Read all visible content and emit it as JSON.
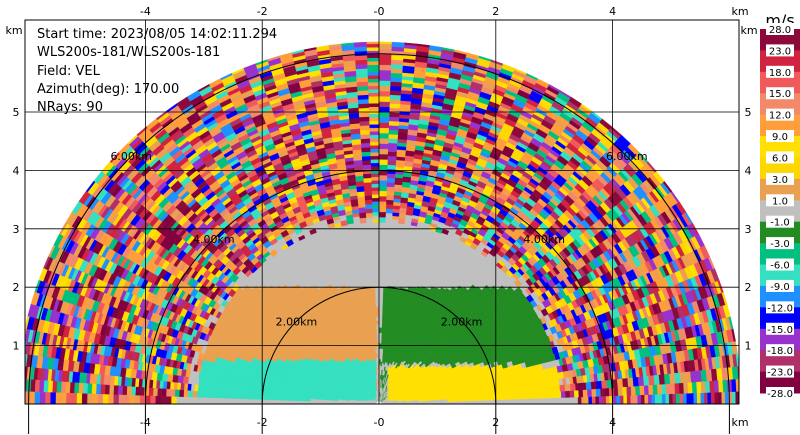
{
  "info": {
    "start_time": "Start time: 2023/08/05 14:02:11.294",
    "instrument": "WLS200s-181/WLS200s-181",
    "field": "Field: VEL",
    "azimuth": "Azimuth(deg): 170.00",
    "nrays": "NRays: 90"
  },
  "colorbar": {
    "unit": "m/s",
    "levels": [
      "28.0",
      "23.0",
      "18.0",
      "15.0",
      "12.0",
      "9.0",
      "6.0",
      "3.0",
      "1.0",
      "-1.0",
      "-3.0",
      "-6.0",
      "-9.0",
      "-12.0",
      "-15.0",
      "-18.0",
      "-23.0",
      "-28.0"
    ],
    "colors": [
      "#8b0a3a",
      "#d1233f",
      "#f05a5a",
      "#f28a6a",
      "#ff9e3a",
      "#ffe000",
      "#ffd700",
      "#e9a050",
      "#c0c0c0",
      "#228b22",
      "#00c080",
      "#33e0c0",
      "#1e90ff",
      "#0000ff",
      "#9932cc",
      "#b0306a",
      "#800040"
    ]
  },
  "chart_data": {
    "type": "heatmap",
    "title": "",
    "xlabel": "",
    "ylabel": "",
    "x_unit": "km",
    "y_unit": "km",
    "xlim": [
      -6.2,
      6.2
    ],
    "ylim": [
      0,
      5.6
    ],
    "x_ticks": [
      "-4",
      "-2",
      "-0",
      "2",
      "4"
    ],
    "y_ticks": [
      "1",
      "2",
      "3",
      "4",
      "5"
    ],
    "range_rings": [
      {
        "radius_km": 2,
        "label": "2.00km"
      },
      {
        "radius_km": 4,
        "label": "4.00km"
      },
      {
        "radius_km": 6,
        "label": "6.00km"
      }
    ],
    "max_range_km": 6.2,
    "grid": true,
    "scan": "RHI-like half-disc sweep, 90 rays",
    "dominant_fields": [
      {
        "region": "left near-surface band",
        "value_range": "-6 to -9 m/s"
      },
      {
        "region": "left mid band",
        "value_range": "1 to 3 m/s"
      },
      {
        "region": "right near-surface band",
        "value_range": "6 to 9 m/s"
      },
      {
        "region": "right mid band",
        "value_range": "-1 to -3 m/s"
      },
      {
        "region": "near zenith",
        "value_range": "-1 to 1 m/s"
      }
    ]
  }
}
